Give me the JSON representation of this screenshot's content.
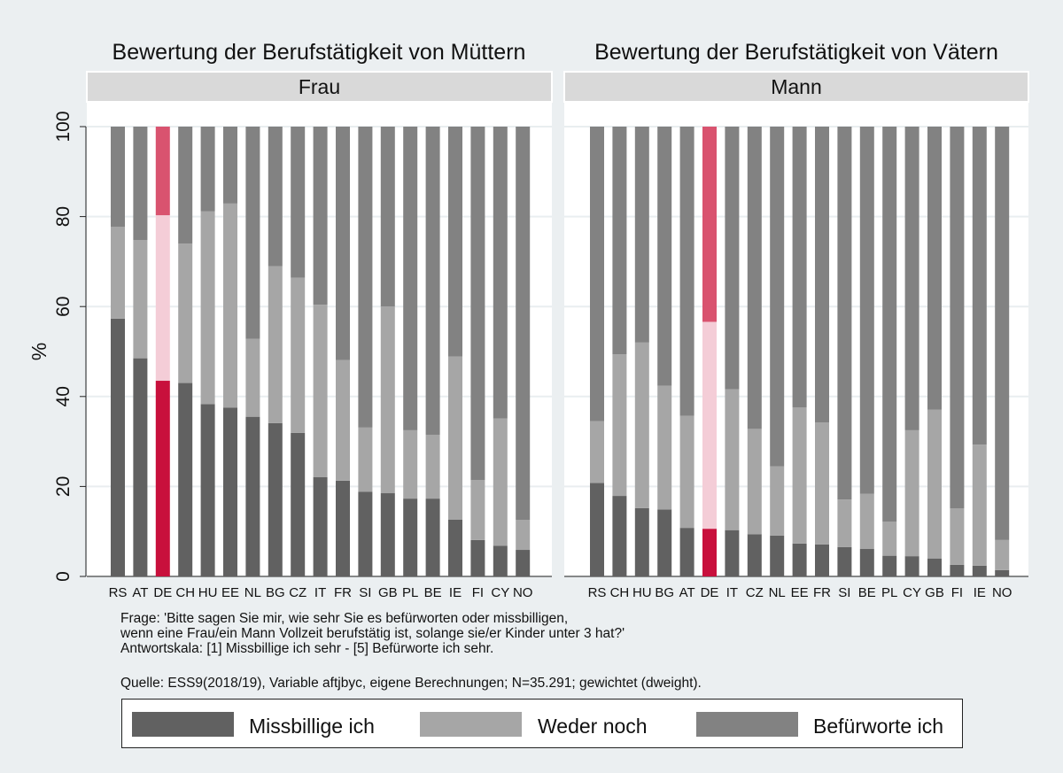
{
  "chart_data": {
    "type": "bar",
    "stacked": true,
    "ylabel": "%",
    "ylim": [
      0,
      100
    ],
    "yticks": [
      "0",
      "20",
      "40",
      "60",
      "80",
      "100"
    ],
    "legend": [
      "Missbillige ich",
      "Weder noch",
      "Befürworte ich"
    ],
    "legend_position": "bottom",
    "colors": {
      "missbillige": "#616161",
      "weder": "#a6a6a6",
      "befuerworte": "#828282",
      "hl_missbillige": "#c8103c",
      "hl_weder": "#f4cdd7",
      "hl_befuerworte": "#d9536f"
    },
    "highlight_category": "DE",
    "panels": [
      {
        "title": "Bewertung der Berufstätigkeit von Müttern",
        "strip": "Frau",
        "categories": [
          "RS",
          "AT",
          "DE",
          "CH",
          "HU",
          "EE",
          "NL",
          "BG",
          "CZ",
          "IT",
          "FR",
          "SI",
          "GB",
          "PL",
          "BE",
          "IE",
          "FI",
          "CY",
          "NO"
        ],
        "series": [
          {
            "name": "Missbillige ich",
            "values": [
              57.3,
              48.5,
              43.5,
              43,
              38.3,
              37.5,
              35.5,
              34.1,
              31.9,
              22.1,
              21.3,
              18.8,
              18.5,
              17.3,
              17.3,
              12.6,
              8.1,
              6.8,
              5.9
            ]
          },
          {
            "name": "Weder noch",
            "values": [
              20.4,
              26.3,
              36.8,
              31,
              42.9,
              45.4,
              17.3,
              34.9,
              34.5,
              38.3,
              26.8,
              14.3,
              41.5,
              15.2,
              14.2,
              36.3,
              13.3,
              28.3,
              6.7
            ]
          },
          {
            "name": "Befürworte ich",
            "values": [
              22.3,
              25.2,
              19.7,
              26,
              18.8,
              17.1,
              47.2,
              31,
              33.6,
              39.6,
              51.9,
              66.9,
              40,
              67.5,
              68.5,
              51.1,
              78.6,
              64.9,
              87.4
            ]
          }
        ]
      },
      {
        "title": "Bewertung der Berufstätigkeit von Vätern",
        "strip": "Mann",
        "categories": [
          "RS",
          "CH",
          "HU",
          "BG",
          "AT",
          "DE",
          "IT",
          "CZ",
          "NL",
          "EE",
          "FR",
          "SI",
          "BE",
          "PL",
          "CY",
          "GB",
          "FI",
          "IE",
          "NO"
        ],
        "series": [
          {
            "name": "Missbillige ich",
            "values": [
              20.8,
              17.9,
              15.2,
              14.9,
              10.8,
              10.6,
              10.3,
              9.4,
              9.1,
              7.3,
              7.1,
              6.5,
              6.1,
              4.6,
              4.5,
              4,
              2.6,
              2.4,
              1.4
            ]
          },
          {
            "name": "Weder noch",
            "values": [
              13.7,
              31.5,
              36.8,
              27.5,
              24.9,
              46,
              31.3,
              23.4,
              15.4,
              30.3,
              27.1,
              10.6,
              12.3,
              7.6,
              28,
              33.1,
              12.5,
              26.9,
              6.7
            ]
          },
          {
            "name": "Befürworte ich",
            "values": [
              65.5,
              50.6,
              48,
              57.6,
              64.3,
              43.4,
              58.4,
              67.2,
              75.5,
              62.4,
              65.8,
              82.9,
              81.6,
              87.8,
              67.5,
              62.9,
              84.9,
              70.7,
              91.9
            ]
          }
        ]
      }
    ]
  },
  "notes": {
    "frage_line1": "Frage: 'Bitte sagen Sie mir, wie sehr Sie es befürworten oder missbilligen,",
    "frage_line2": "wenn eine Frau/ein Mann Vollzeit berufstätig ist, solange sie/er Kinder unter 3 hat?'",
    "skala": "Antwortskala: [1] Missbillige ich sehr - [5] Befürworte ich sehr.",
    "quelle": "Quelle: ESS9(2018/19), Variable aftjbyc, eigene Berechnungen; N=35.291; gewichtet (dweight)."
  }
}
